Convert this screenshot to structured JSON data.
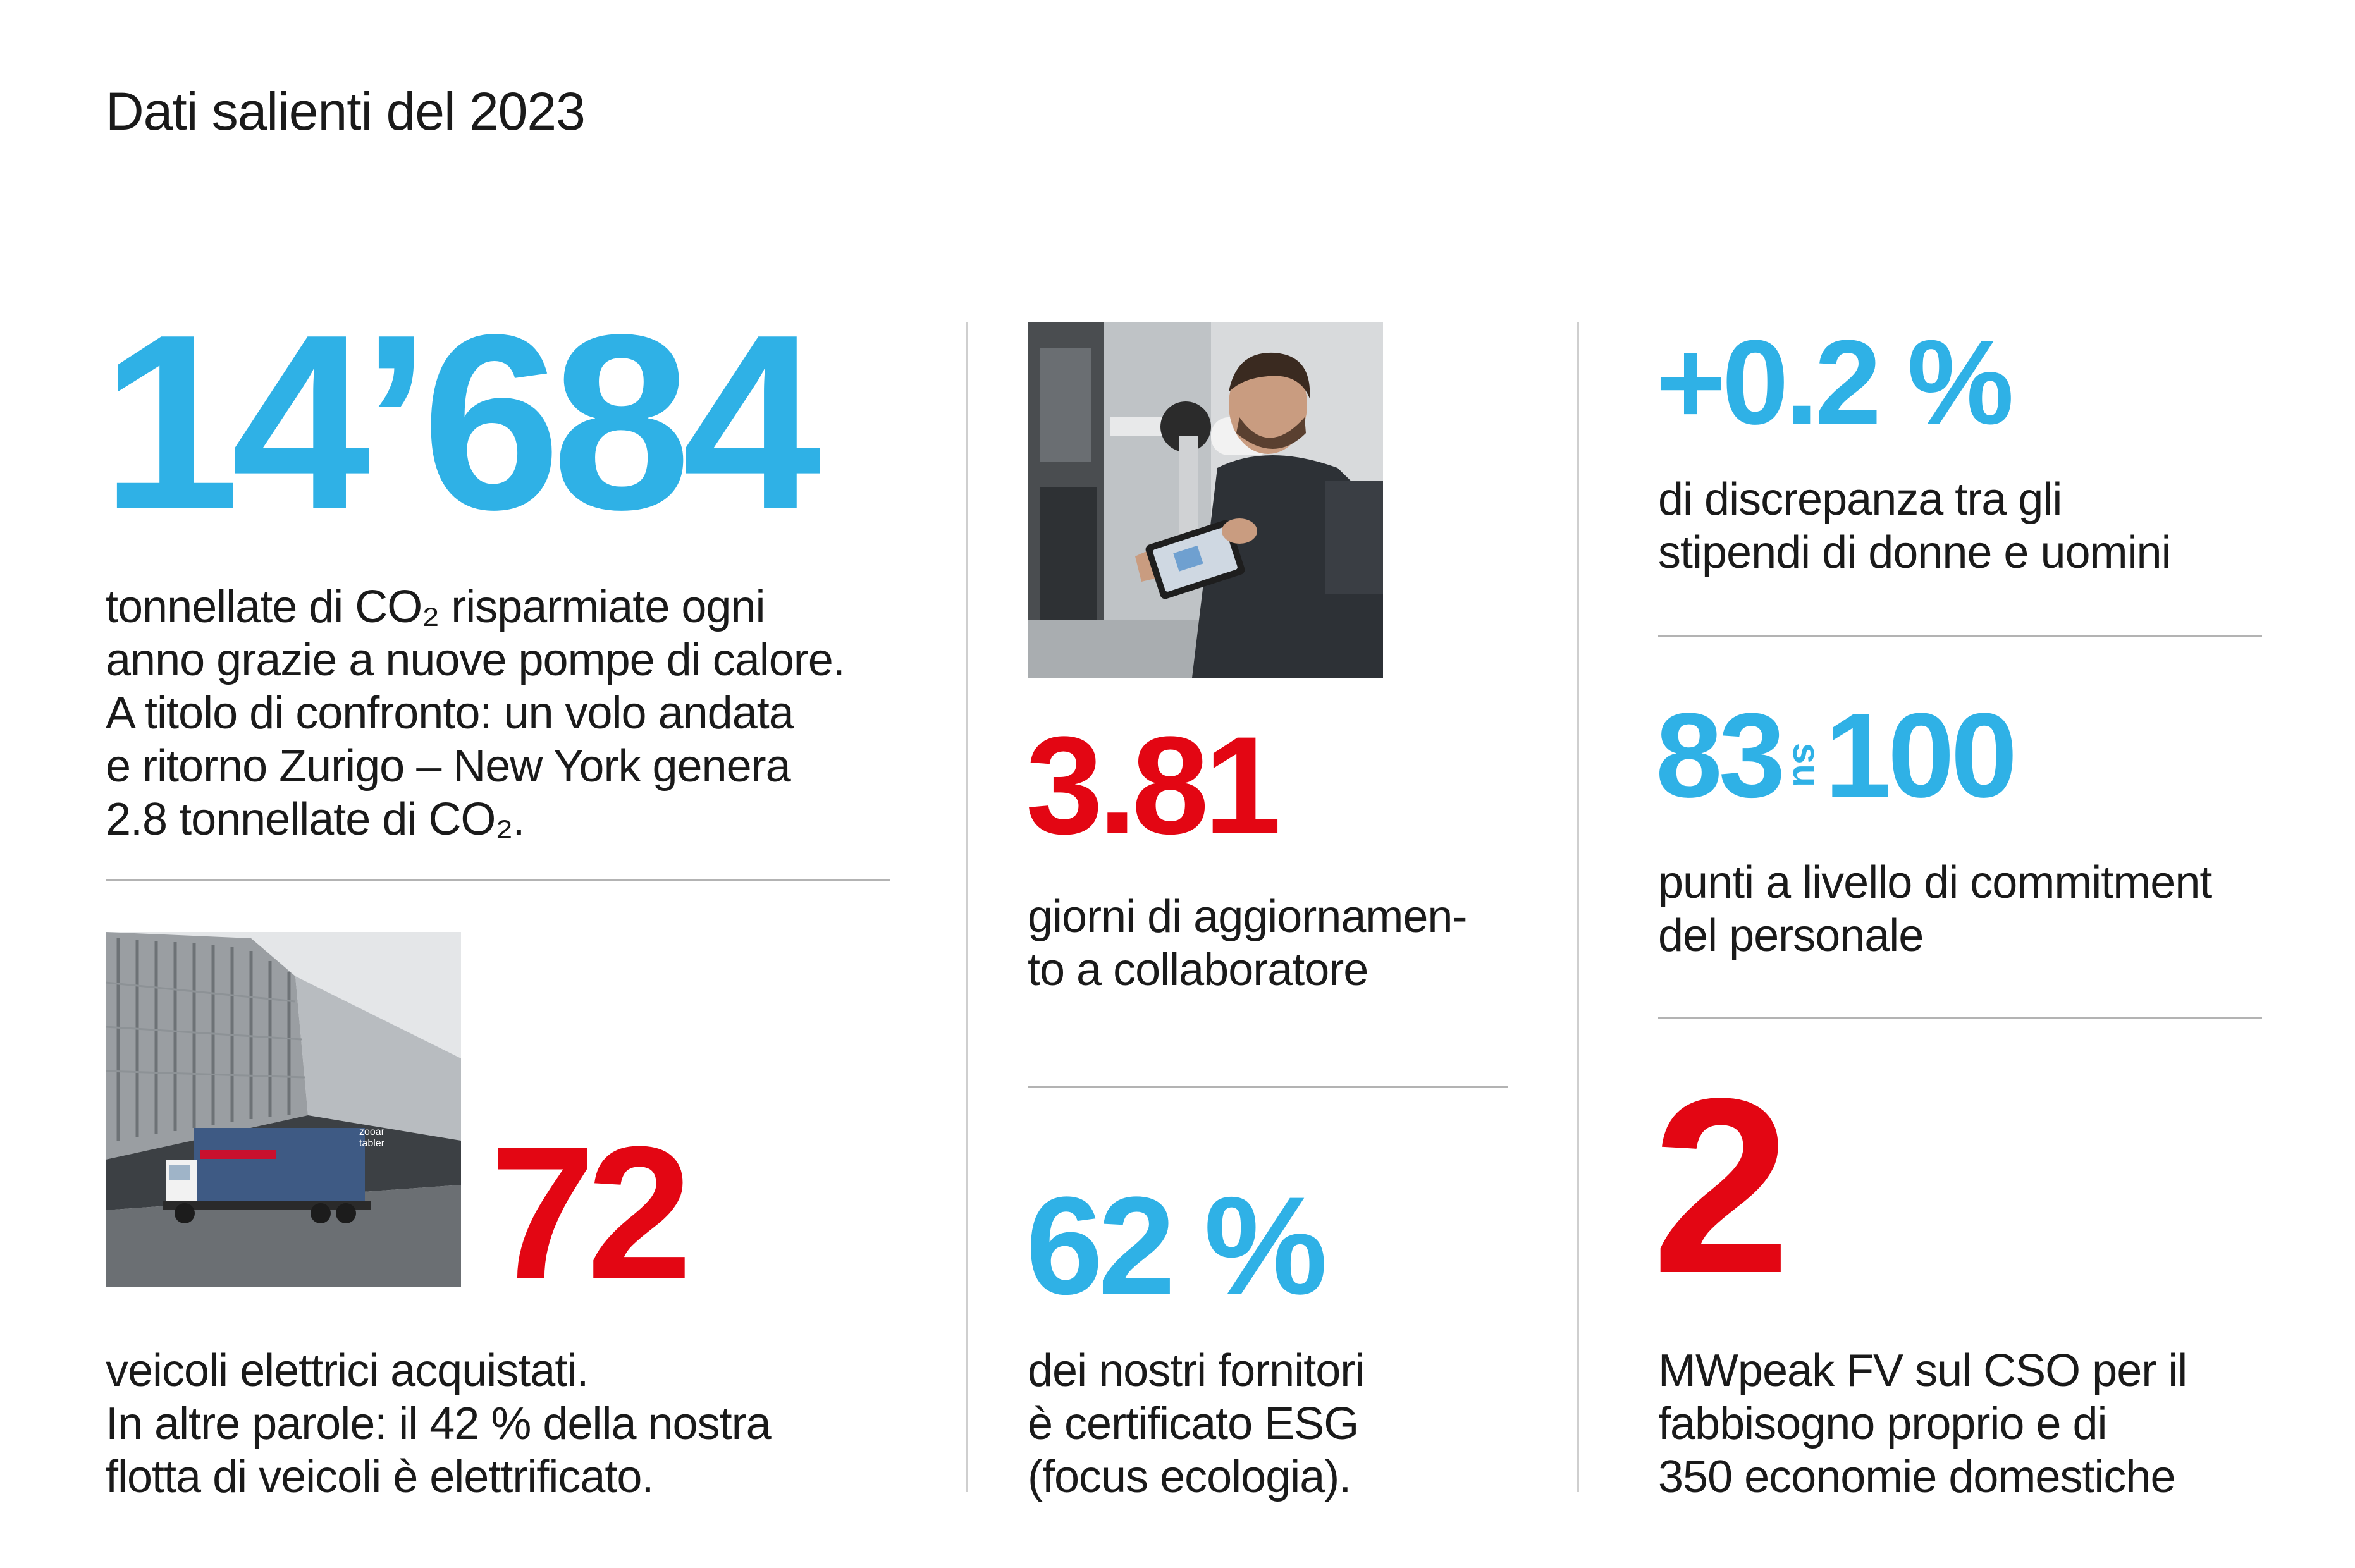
{
  "title": "Dati salienti del 2023",
  "stat_co2": {
    "value": "14’684",
    "lines": [
      "tonnellate di CO₂ risparmiate ogni",
      "anno grazie a nuove pompe di calore.",
      "A titolo di confronto: un volo andata",
      "e ritorno Zurigo – New York genera",
      "2.8 tonnellate di CO₂."
    ]
  },
  "stat_vehicles": {
    "value": "72",
    "truck_text": "zooar tabler",
    "lines": [
      "veicoli elettrici acquistati.",
      "In altre parole: il 42 % della nostra",
      "flotta di veicoli è elettrificato."
    ]
  },
  "stat_training": {
    "value": "3.81",
    "lines": [
      "giorni di aggiornamen-",
      "to a collaboratore"
    ]
  },
  "stat_suppliers": {
    "value": "62 %",
    "lines": [
      "dei nostri fornitori",
      "è certificato ESG",
      "(focus ecologia)."
    ]
  },
  "stat_pay_gap": {
    "value": "+0.2 %",
    "lines": [
      "di discrepanza tra gli",
      "stipendi di donne e uomini"
    ]
  },
  "stat_commitment": {
    "value_a": "83",
    "connector": "su",
    "value_b": "100",
    "lines": [
      "punti a livello di commitment",
      "del personale"
    ]
  },
  "stat_solar": {
    "value": "2",
    "lines": [
      "MWpeak FV sul CSO per il",
      "fabbisogno proprio e di",
      "350 economie domestiche"
    ]
  },
  "colors": {
    "blue": "#2fb1e6",
    "red": "#e30613",
    "text": "#1a1a1a",
    "rule": "#b3b3b3"
  }
}
